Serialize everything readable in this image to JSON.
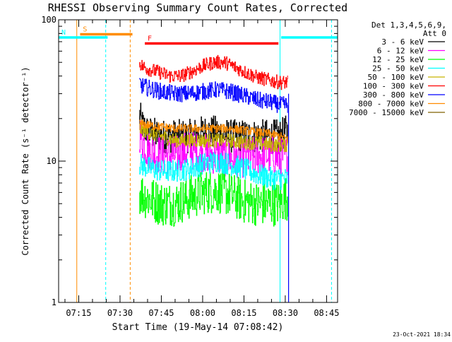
{
  "chart_data": {
    "type": "line",
    "title": "RHESSI Observing Summary Count Rates, Corrected",
    "ylabel": "Corrected Count Rate (s⁻¹ detector⁻¹)",
    "xlabel": "Start Time (19-May-14 07:08:42)",
    "footer_date": "23-Oct-2021 18:34",
    "y_scale": "log",
    "ylim": [
      1,
      100
    ],
    "y_ticks": [
      {
        "value": 1,
        "label": "1"
      },
      {
        "value": 10,
        "label": "10"
      },
      {
        "value": 100,
        "label": "100"
      }
    ],
    "x_unit": "minutes since 07:00 UT, 19-May-2014",
    "xlim": [
      7.7,
      109
    ],
    "x_ticks": [
      {
        "value": 15,
        "label": "07:15"
      },
      {
        "value": 30,
        "label": "07:30"
      },
      {
        "value": 45,
        "label": "07:45"
      },
      {
        "value": 60,
        "label": "08:00"
      },
      {
        "value": 75,
        "label": "08:15"
      },
      {
        "value": 90,
        "label": "08:30"
      },
      {
        "value": 105,
        "label": "08:45"
      }
    ],
    "legend_header": [
      "Det 1,3,4,5,6,9,",
      "Att 0"
    ],
    "legend_position": "right",
    "series": [
      {
        "name": "3 - 6 keV",
        "color": "#000000",
        "points": [
          [
            37,
            21
          ],
          [
            38,
            18
          ],
          [
            40,
            16
          ],
          [
            45,
            15
          ],
          [
            50,
            15
          ],
          [
            55,
            15
          ],
          [
            60,
            16
          ],
          [
            65,
            16
          ],
          [
            70,
            15
          ],
          [
            75,
            15
          ],
          [
            80,
            15
          ],
          [
            85,
            15
          ],
          [
            88,
            15
          ],
          [
            90,
            16
          ],
          [
            91,
            16
          ]
        ]
      },
      {
        "name": "6 - 12 keV",
        "color": "#ff00ff",
        "points": [
          [
            37,
            16
          ],
          [
            38,
            14
          ],
          [
            40,
            12
          ],
          [
            45,
            11
          ],
          [
            50,
            11
          ],
          [
            55,
            12
          ],
          [
            60,
            11.5
          ],
          [
            65,
            11
          ],
          [
            70,
            10.5
          ],
          [
            75,
            10.5
          ],
          [
            80,
            11
          ],
          [
            85,
            11
          ],
          [
            88,
            10.5
          ],
          [
            90,
            11
          ],
          [
            91,
            11
          ]
        ]
      },
      {
        "name": "12 - 25 keV",
        "color": "#00ff00",
        "points": [
          [
            37,
            6.0
          ],
          [
            40,
            5.5
          ],
          [
            45,
            5.0
          ],
          [
            50,
            5.0
          ],
          [
            55,
            5.5
          ],
          [
            60,
            6.0
          ],
          [
            65,
            6.2
          ],
          [
            70,
            5.8
          ],
          [
            75,
            5.2
          ],
          [
            80,
            5.0
          ],
          [
            85,
            5.0
          ],
          [
            88,
            5.0
          ],
          [
            90,
            5.5
          ],
          [
            91,
            5.5
          ]
        ]
      },
      {
        "name": "25 - 50 keV",
        "color": "#00ffff",
        "points": [
          [
            37,
            9.5
          ],
          [
            40,
            9.0
          ],
          [
            45,
            8.5
          ],
          [
            50,
            8.5
          ],
          [
            55,
            8.8
          ],
          [
            60,
            9.5
          ],
          [
            65,
            10.0
          ],
          [
            70,
            9.5
          ],
          [
            75,
            8.8
          ],
          [
            80,
            8.0
          ],
          [
            85,
            7.5
          ],
          [
            88,
            7.5
          ],
          [
            90,
            7.5
          ],
          [
            91,
            7.5
          ]
        ]
      },
      {
        "name": "50 - 100 keV",
        "color": "#c8b400",
        "points": [
          [
            37,
            17
          ],
          [
            40,
            16
          ],
          [
            45,
            15
          ],
          [
            50,
            14
          ],
          [
            55,
            14
          ],
          [
            60,
            14
          ],
          [
            65,
            14
          ],
          [
            70,
            14
          ],
          [
            75,
            13.5
          ],
          [
            80,
            13.5
          ],
          [
            85,
            13
          ],
          [
            88,
            13
          ],
          [
            90,
            13
          ],
          [
            91,
            13
          ]
        ]
      },
      {
        "name": "100 - 300 keV",
        "color": "#ff0000",
        "points": [
          [
            37,
            50
          ],
          [
            38,
            47
          ],
          [
            40,
            45
          ],
          [
            45,
            42
          ],
          [
            48,
            40
          ],
          [
            52,
            40
          ],
          [
            56,
            43
          ],
          [
            60,
            47
          ],
          [
            64,
            50
          ],
          [
            68,
            50
          ],
          [
            72,
            46
          ],
          [
            76,
            42
          ],
          [
            80,
            39
          ],
          [
            85,
            37
          ],
          [
            88,
            36
          ],
          [
            90,
            36
          ],
          [
            91,
            36
          ]
        ]
      },
      {
        "name": "300 - 800 keV",
        "color": "#0000ff",
        "points": [
          [
            37,
            36
          ],
          [
            38,
            34
          ],
          [
            40,
            33
          ],
          [
            45,
            31
          ],
          [
            50,
            30
          ],
          [
            55,
            30
          ],
          [
            60,
            31
          ],
          [
            65,
            32
          ],
          [
            70,
            31
          ],
          [
            75,
            29
          ],
          [
            80,
            27
          ],
          [
            85,
            26
          ],
          [
            88,
            25
          ],
          [
            90,
            25
          ],
          [
            91,
            25
          ]
        ]
      },
      {
        "name": "800 - 7000 keV",
        "color": "#ff8c00",
        "points": [
          [
            37,
            18.5
          ],
          [
            40,
            18
          ],
          [
            45,
            17.5
          ],
          [
            50,
            17
          ],
          [
            55,
            17
          ],
          [
            60,
            17
          ],
          [
            65,
            17
          ],
          [
            70,
            17
          ],
          [
            75,
            16.5
          ],
          [
            80,
            16
          ],
          [
            85,
            15.5
          ],
          [
            88,
            15
          ],
          [
            90,
            14.5
          ],
          [
            91,
            14.5
          ]
        ]
      },
      {
        "name": "7000 - 15000 keV",
        "color": "#806000",
        "points": []
      }
    ],
    "flag_bars": [
      {
        "label": "S",
        "color": "#ff8c00",
        "x_start": 15.5,
        "x_end": 34.5,
        "y_value": 79
      },
      {
        "label": "N",
        "color": "#00ffff",
        "x_start": 7.7,
        "x_end": 25.5,
        "y_value": 75
      },
      {
        "label": "F",
        "color": "#ff0000",
        "x_start": 39,
        "x_end": 87.5,
        "y_value": 68
      },
      {
        "label": "",
        "color": "#00ffff",
        "x_start": 88.5,
        "x_end": 109,
        "y_value": 75
      }
    ],
    "event_lines": [
      {
        "x": 14.3,
        "color": "#ff8c00",
        "dashed": false
      },
      {
        "x": 24.8,
        "color": "#00ffff",
        "dashed": true
      },
      {
        "x": 33.7,
        "color": "#ff8c00",
        "dashed": true
      },
      {
        "x": 88.1,
        "color": "#00ffff",
        "dashed": false
      },
      {
        "x": 106.8,
        "color": "#00ffff",
        "dashed": true
      }
    ]
  }
}
